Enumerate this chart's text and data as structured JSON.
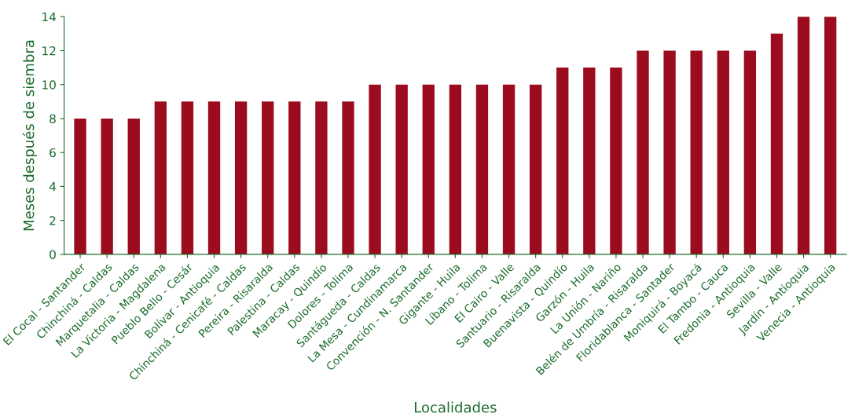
{
  "chart_data": {
    "type": "bar",
    "xlabel": "Localidades",
    "ylabel": "Meses después de siembra",
    "categories": [
      "El Cocal - Santander",
      "Chinchiná - Caldas",
      "Marquetalia - Caldas",
      "La Victoria - Magdalena",
      "Pueblo Bello - Cesár",
      "Bolívar - Antioquia",
      "Chinchiná - Cenicafé - Caldas",
      "Pereira - Risaralda",
      "Palestina - Caldas",
      "Maracay - Quindío",
      "Dolores - Tolima",
      "Santágueda - Caldas",
      "La Mesa - Cundinamarca",
      "Convención - N. Santander",
      "Gigante - Huila",
      "Líbano - Tolima",
      "El Cairo - Valle",
      "Santuario - Risaralda",
      "Buenavista - Quindío",
      "Garzón - Huila",
      "La Unión - Nariño",
      "Belén de Umbría - Risaralda",
      "Floridablanca - Santader",
      "Moniquirá - Boyacá",
      "El Tambo - Cauca",
      "Fredonia - Antioquia",
      "Sevilla - Valle",
      "Jardín - Antioquia",
      "Venecia - Antioquia"
    ],
    "values": [
      8,
      8,
      8,
      9,
      9,
      9,
      9,
      9,
      9,
      9,
      9,
      10,
      10,
      10,
      10,
      10,
      10,
      10,
      11,
      11,
      11,
      12,
      12,
      12,
      12,
      12,
      13,
      14,
      14
    ],
    "color": "#9b0d1e",
    "ylim": [
      0,
      14
    ],
    "yticks": [
      0,
      2,
      4,
      6,
      8,
      10,
      12,
      14
    ],
    "grid": false,
    "legend": false
  }
}
